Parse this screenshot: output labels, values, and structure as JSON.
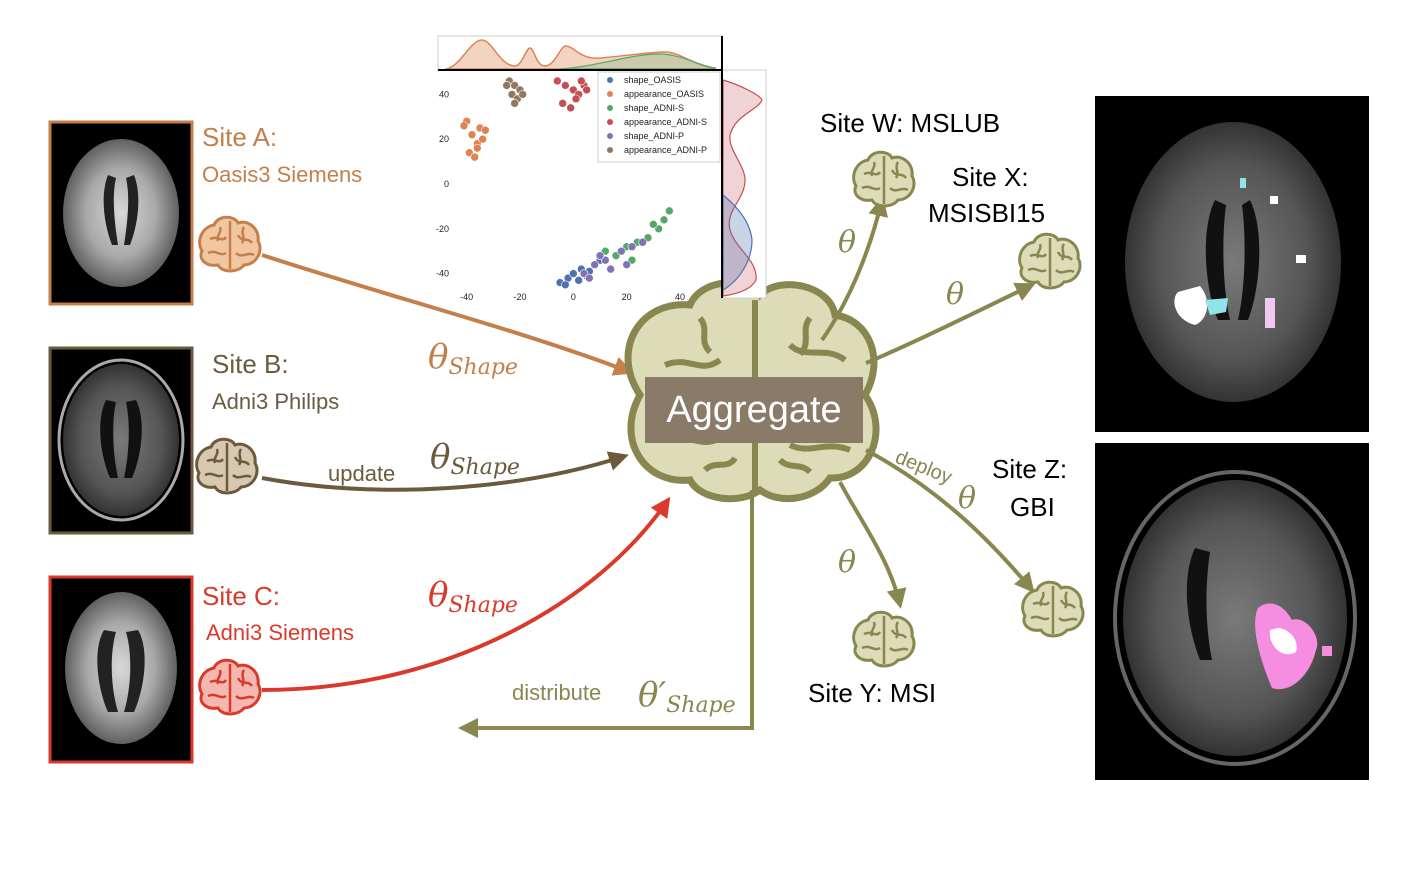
{
  "colors": {
    "site_a": "#c47f4a",
    "site_b": "#6b5a3d",
    "site_c": "#d93a2b",
    "aggregator": "#8a8650",
    "brain_fill": "#dcdcb8",
    "aggregate_box": "#8a7a68"
  },
  "sites_in": [
    {
      "title": "Site A:",
      "subtitle": "Oasis3 Siemens",
      "param": "θ",
      "param_sub": "Shape",
      "icon": "brain-icon"
    },
    {
      "title": "Site B:",
      "subtitle": "Adni3 Philips",
      "param": "θ",
      "param_sub": "Shape",
      "icon": "brain-icon"
    },
    {
      "title": "Site C:",
      "subtitle": "Adni3 Siemens",
      "param": "θ",
      "param_sub": "Shape",
      "icon": "brain-icon"
    }
  ],
  "update_label": "update",
  "aggregate_label": "Aggregate",
  "distribute": {
    "label": "distribute",
    "param": "θ′",
    "param_sub": "Shape"
  },
  "sites_out": [
    {
      "name": "Site W: MSLUB",
      "param": "θ"
    },
    {
      "name_line1": "Site X:",
      "name_line2": "MSISBI15",
      "param": "θ"
    },
    {
      "name": "Site Y: MSI",
      "param": "θ"
    },
    {
      "name_line1": "Site Z:",
      "name_line2": "GBI",
      "param": "θ",
      "deploy_label": "deploy"
    }
  ],
  "chart_data": {
    "type": "scatter",
    "title": "",
    "xlabel": "",
    "ylabel": "",
    "xlim": [
      -50,
      55
    ],
    "ylim": [
      -50,
      50
    ],
    "xticks": [
      "-40",
      "-20",
      "0",
      "20",
      "40"
    ],
    "yticks": [
      "40",
      "20",
      "0",
      "-20",
      "-40"
    ],
    "legend_position": "top-right",
    "series": [
      {
        "name": "shape_OASIS",
        "color": "#4c72b0",
        "x": [
          -5,
          -2,
          0,
          3,
          5,
          8,
          10,
          2,
          -3,
          6
        ],
        "y": [
          -44,
          -42,
          -40,
          -38,
          -41,
          -36,
          -34,
          -43,
          -45,
          -39
        ]
      },
      {
        "name": "appearance_OASIS",
        "color": "#dd8452",
        "x": [
          -40,
          -38,
          -36,
          -35,
          -39,
          -37,
          -34,
          -41,
          -36,
          -33
        ],
        "y": [
          28,
          22,
          18,
          25,
          14,
          12,
          20,
          26,
          16,
          24
        ]
      },
      {
        "name": "shape_ADNI-S",
        "color": "#55a868",
        "x": [
          12,
          16,
          20,
          24,
          28,
          32,
          34,
          36,
          22,
          30
        ],
        "y": [
          -30,
          -32,
          -28,
          -26,
          -24,
          -20,
          -16,
          -12,
          -34,
          -18
        ]
      },
      {
        "name": "appearance_ADNI-S",
        "color": "#c44e52",
        "x": [
          -6,
          -3,
          0,
          2,
          4,
          -4,
          1,
          3,
          -1,
          5
        ],
        "y": [
          46,
          44,
          42,
          40,
          44,
          36,
          38,
          46,
          34,
          42
        ]
      },
      {
        "name": "shape_ADNI-P",
        "color": "#8172b3",
        "x": [
          4,
          8,
          12,
          18,
          22,
          26,
          14,
          10,
          20,
          6
        ],
        "y": [
          -40,
          -36,
          -34,
          -30,
          -28,
          -26,
          -38,
          -32,
          -36,
          -42
        ]
      },
      {
        "name": "appearance_ADNI-P",
        "color": "#937860",
        "x": [
          -24,
          -22,
          -20,
          -23,
          -21,
          -25,
          -19,
          -22
        ],
        "y": [
          46,
          44,
          42,
          40,
          38,
          44,
          40,
          36
        ]
      }
    ]
  }
}
